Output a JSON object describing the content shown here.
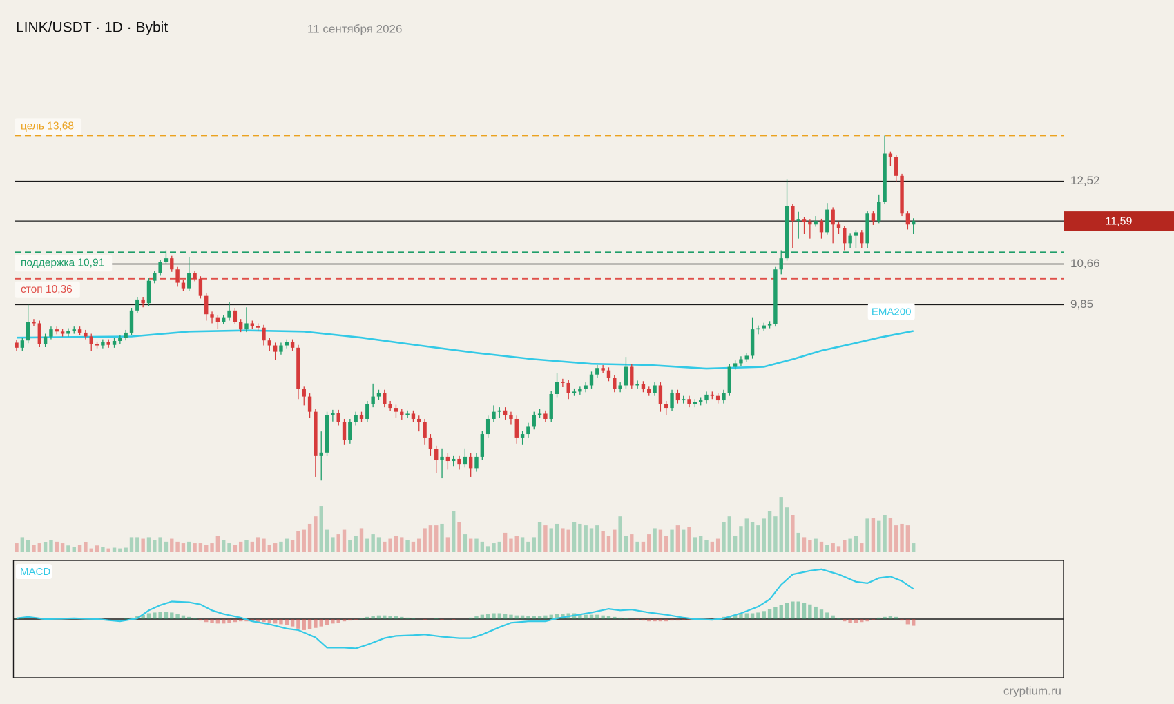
{
  "chart_data": {
    "type": "candlestick",
    "title": "LINK/USDT · 1D · Bybit",
    "date": "11 сентября 2026",
    "watermark": "cryptium.ru",
    "log_scale": true,
    "ylim": [
      6.9,
      14.5
    ],
    "up_color": "#1f9e6a",
    "down_color": "#d63b3b",
    "ohlc": [
      [
        9.15,
        9.2,
        9.0,
        9.06
      ],
      [
        9.06,
        9.24,
        9.01,
        9.19
      ],
      [
        9.19,
        9.85,
        9.14,
        9.53
      ],
      [
        9.53,
        9.58,
        9.45,
        9.5
      ],
      [
        9.5,
        9.55,
        9.07,
        9.12
      ],
      [
        9.12,
        9.31,
        9.07,
        9.26
      ],
      [
        9.26,
        9.44,
        9.21,
        9.39
      ],
      [
        9.39,
        9.44,
        9.3,
        9.35
      ],
      [
        9.35,
        9.4,
        9.26,
        9.31
      ],
      [
        9.31,
        9.41,
        9.26,
        9.36
      ],
      [
        9.36,
        9.44,
        9.31,
        9.39
      ],
      [
        9.39,
        9.44,
        9.28,
        9.33
      ],
      [
        9.33,
        9.38,
        9.21,
        9.26
      ],
      [
        9.26,
        9.31,
        9.0,
        9.12
      ],
      [
        9.12,
        9.17,
        9.05,
        9.1
      ],
      [
        9.1,
        9.21,
        9.05,
        9.16
      ],
      [
        9.16,
        9.21,
        9.06,
        9.11
      ],
      [
        9.11,
        9.23,
        9.06,
        9.18
      ],
      [
        9.18,
        9.29,
        9.13,
        9.24
      ],
      [
        9.24,
        9.38,
        9.19,
        9.33
      ],
      [
        9.33,
        9.79,
        9.28,
        9.74
      ],
      [
        9.74,
        10.0,
        9.69,
        9.95
      ],
      [
        9.95,
        10.0,
        9.8,
        9.88
      ],
      [
        9.88,
        10.37,
        9.83,
        10.32
      ],
      [
        10.32,
        10.52,
        10.27,
        10.47
      ],
      [
        10.47,
        10.75,
        10.42,
        10.7
      ],
      [
        10.7,
        10.95,
        10.65,
        10.78
      ],
      [
        10.78,
        10.83,
        10.5,
        10.55
      ],
      [
        10.55,
        10.6,
        10.2,
        10.28
      ],
      [
        10.28,
        10.33,
        10.12,
        10.17
      ],
      [
        10.17,
        10.8,
        10.12,
        10.47
      ],
      [
        10.47,
        10.52,
        10.31,
        10.36
      ],
      [
        10.36,
        10.41,
        9.97,
        10.02
      ],
      [
        10.02,
        10.07,
        9.55,
        9.67
      ],
      [
        9.67,
        9.72,
        9.5,
        9.6
      ],
      [
        9.6,
        9.65,
        9.4,
        9.53
      ],
      [
        9.53,
        9.65,
        9.48,
        9.6
      ],
      [
        9.6,
        9.9,
        9.55,
        9.74
      ],
      [
        9.74,
        9.79,
        9.48,
        9.53
      ],
      [
        9.53,
        9.58,
        9.34,
        9.39
      ],
      [
        9.39,
        9.8,
        9.34,
        9.5
      ],
      [
        9.5,
        9.55,
        9.4,
        9.45
      ],
      [
        9.45,
        9.5,
        9.37,
        9.42
      ],
      [
        9.42,
        9.47,
        9.1,
        9.19
      ],
      [
        9.19,
        9.24,
        9.0,
        9.1
      ],
      [
        9.1,
        9.15,
        8.85,
        8.99
      ],
      [
        8.99,
        9.15,
        8.94,
        9.1
      ],
      [
        9.1,
        9.21,
        9.05,
        9.16
      ],
      [
        9.16,
        9.21,
        9.01,
        9.06
      ],
      [
        9.06,
        9.11,
        8.2,
        8.36
      ],
      [
        8.36,
        8.41,
        8.1,
        8.24
      ],
      [
        8.24,
        8.29,
        7.9,
        8.0
      ],
      [
        8.0,
        8.05,
        7.05,
        7.35
      ],
      [
        7.35,
        7.7,
        7.0,
        7.39
      ],
      [
        7.39,
        8.0,
        7.34,
        7.95
      ],
      [
        7.95,
        8.03,
        7.85,
        7.98
      ],
      [
        7.98,
        8.03,
        7.79,
        7.84
      ],
      [
        7.84,
        7.89,
        7.5,
        7.57
      ],
      [
        7.57,
        7.89,
        7.52,
        7.84
      ],
      [
        7.84,
        8.0,
        7.79,
        7.95
      ],
      [
        7.95,
        8.0,
        7.84,
        7.89
      ],
      [
        7.89,
        8.17,
        7.84,
        8.12
      ],
      [
        8.12,
        8.45,
        8.07,
        8.24
      ],
      [
        8.24,
        8.35,
        8.19,
        8.3
      ],
      [
        8.3,
        8.35,
        8.07,
        8.12
      ],
      [
        8.12,
        8.17,
        8.01,
        8.06
      ],
      [
        8.06,
        8.11,
        7.9,
        8.0
      ],
      [
        8.0,
        8.05,
        7.88,
        7.95
      ],
      [
        7.95,
        8.02,
        7.9,
        7.97
      ],
      [
        7.97,
        8.02,
        7.84,
        7.89
      ],
      [
        7.89,
        7.94,
        7.7,
        7.84
      ],
      [
        7.84,
        7.89,
        7.5,
        7.61
      ],
      [
        7.61,
        7.66,
        7.35,
        7.44
      ],
      [
        7.44,
        7.49,
        7.1,
        7.28
      ],
      [
        7.28,
        7.45,
        7.03,
        7.33
      ],
      [
        7.33,
        7.38,
        7.15,
        7.27
      ],
      [
        7.27,
        7.35,
        7.2,
        7.3
      ],
      [
        7.3,
        7.35,
        7.15,
        7.23
      ],
      [
        7.23,
        7.45,
        7.18,
        7.33
      ],
      [
        7.33,
        7.38,
        7.05,
        7.17
      ],
      [
        7.17,
        7.38,
        7.12,
        7.33
      ],
      [
        7.33,
        7.71,
        7.28,
        7.66
      ],
      [
        7.66,
        7.94,
        7.61,
        7.89
      ],
      [
        7.89,
        8.1,
        7.84,
        8.0
      ],
      [
        8.0,
        8.07,
        7.9,
        8.02
      ],
      [
        8.02,
        8.07,
        7.88,
        7.95
      ],
      [
        7.95,
        8.0,
        7.8,
        7.89
      ],
      [
        7.89,
        7.94,
        7.52,
        7.61
      ],
      [
        7.61,
        7.71,
        7.5,
        7.66
      ],
      [
        7.66,
        7.83,
        7.61,
        7.78
      ],
      [
        7.78,
        8.0,
        7.73,
        7.95
      ],
      [
        7.95,
        8.05,
        7.9,
        7.97
      ],
      [
        7.97,
        8.02,
        7.84,
        7.89
      ],
      [
        7.89,
        8.33,
        7.84,
        8.28
      ],
      [
        8.28,
        8.63,
        8.23,
        8.48
      ],
      [
        8.48,
        8.53,
        8.4,
        8.46
      ],
      [
        8.46,
        8.51,
        8.2,
        8.3
      ],
      [
        8.3,
        8.37,
        8.25,
        8.32
      ],
      [
        8.32,
        8.41,
        8.27,
        8.36
      ],
      [
        8.36,
        8.47,
        8.31,
        8.42
      ],
      [
        8.42,
        8.65,
        8.37,
        8.6
      ],
      [
        8.6,
        8.76,
        8.55,
        8.71
      ],
      [
        8.71,
        8.76,
        8.62,
        8.67
      ],
      [
        8.67,
        8.72,
        8.49,
        8.54
      ],
      [
        8.54,
        8.59,
        8.31,
        8.36
      ],
      [
        8.36,
        8.47,
        8.31,
        8.42
      ],
      [
        8.42,
        8.9,
        8.37,
        8.73
      ],
      [
        8.73,
        8.78,
        8.37,
        8.42
      ],
      [
        8.42,
        8.5,
        8.37,
        8.44
      ],
      [
        8.44,
        8.49,
        8.31,
        8.36
      ],
      [
        8.36,
        8.41,
        8.25,
        8.3
      ],
      [
        8.3,
        8.47,
        8.25,
        8.42
      ],
      [
        8.42,
        8.47,
        8.0,
        8.12
      ],
      [
        8.12,
        8.17,
        7.95,
        8.06
      ],
      [
        8.06,
        8.35,
        8.01,
        8.3
      ],
      [
        8.3,
        8.35,
        8.13,
        8.18
      ],
      [
        8.18,
        8.25,
        8.13,
        8.2
      ],
      [
        8.2,
        8.25,
        8.07,
        8.12
      ],
      [
        8.12,
        8.2,
        8.07,
        8.15
      ],
      [
        8.15,
        8.23,
        8.1,
        8.18
      ],
      [
        8.18,
        8.32,
        8.13,
        8.27
      ],
      [
        8.27,
        8.32,
        8.2,
        8.25
      ],
      [
        8.25,
        8.3,
        8.13,
        8.18
      ],
      [
        8.18,
        8.35,
        8.13,
        8.3
      ],
      [
        8.3,
        8.78,
        8.25,
        8.73
      ],
      [
        8.73,
        8.84,
        8.68,
        8.79
      ],
      [
        8.79,
        8.91,
        8.74,
        8.86
      ],
      [
        8.86,
        8.97,
        8.81,
        8.92
      ],
      [
        8.92,
        9.6,
        8.87,
        9.39
      ],
      [
        9.39,
        9.46,
        9.3,
        9.41
      ],
      [
        9.41,
        9.51,
        9.36,
        9.46
      ],
      [
        9.46,
        9.54,
        9.41,
        9.49
      ],
      [
        9.49,
        10.6,
        9.44,
        10.55
      ],
      [
        10.55,
        10.95,
        10.45,
        10.78
      ],
      [
        10.78,
        12.56,
        10.73,
        11.93
      ],
      [
        11.93,
        11.98,
        11.0,
        11.59
      ],
      [
        11.59,
        11.8,
        11.2,
        11.62
      ],
      [
        11.62,
        11.67,
        11.3,
        11.57
      ],
      [
        11.57,
        11.62,
        11.2,
        11.51
      ],
      [
        11.51,
        11.7,
        11.46,
        11.59
      ],
      [
        11.59,
        11.64,
        11.2,
        11.34
      ],
      [
        11.34,
        12.0,
        11.29,
        11.85
      ],
      [
        11.85,
        11.9,
        11.1,
        11.51
      ],
      [
        11.51,
        11.56,
        11.3,
        11.43
      ],
      [
        11.43,
        11.48,
        10.95,
        11.1
      ],
      [
        11.1,
        11.31,
        11.0,
        11.26
      ],
      [
        11.26,
        11.39,
        11.0,
        11.34
      ],
      [
        11.34,
        11.39,
        11.0,
        11.1
      ],
      [
        11.1,
        11.81,
        11.0,
        11.76
      ],
      [
        11.76,
        11.81,
        11.5,
        11.59
      ],
      [
        11.59,
        12.2,
        11.54,
        12.02
      ],
      [
        12.02,
        13.68,
        11.97,
        13.21
      ],
      [
        13.21,
        13.26,
        12.9,
        13.12
      ],
      [
        13.12,
        13.17,
        12.5,
        12.65
      ],
      [
        12.65,
        12.7,
        11.7,
        11.76
      ],
      [
        11.76,
        11.81,
        11.4,
        11.51
      ],
      [
        11.51,
        11.65,
        11.3,
        11.59
      ]
    ],
    "volume": [
      12,
      20,
      16,
      10,
      12,
      13,
      16,
      14,
      12,
      9,
      7,
      10,
      13,
      5,
      9,
      7,
      5,
      6,
      5,
      6,
      20,
      20,
      18,
      20,
      16,
      20,
      14,
      18,
      14,
      12,
      14,
      12,
      12,
      10,
      12,
      22,
      16,
      12,
      10,
      14,
      16,
      14,
      20,
      18,
      10,
      12,
      14,
      18,
      16,
      28,
      30,
      38,
      48,
      62,
      30,
      20,
      24,
      30,
      16,
      22,
      32,
      18,
      24,
      20,
      14,
      18,
      22,
      20,
      16,
      14,
      18,
      32,
      36,
      36,
      38,
      20,
      55,
      40,
      24,
      18,
      18,
      14,
      8,
      12,
      14,
      26,
      18,
      22,
      20,
      14,
      20,
      40,
      36,
      32,
      38,
      32,
      30,
      40,
      38,
      36,
      32,
      36,
      28,
      22,
      30,
      48,
      22,
      24,
      14,
      14,
      24,
      32,
      30,
      22,
      30,
      36,
      30,
      34,
      20,
      22,
      16,
      14,
      18,
      40,
      48,
      22,
      35,
      45,
      40,
      36,
      45,
      55,
      48,
      74,
      60,
      50,
      26,
      20,
      16,
      18,
      14,
      10,
      12,
      8,
      16,
      18,
      22,
      12,
      45,
      46,
      42,
      50,
      46,
      36,
      38,
      36,
      12
    ],
    "levels": [
      {
        "value": 12.52,
        "label": "12,52"
      },
      {
        "value": 10.66,
        "label": "10,66"
      },
      {
        "value": 9.85,
        "label": "9,85"
      }
    ],
    "current_price": {
      "value": 11.59,
      "label": "11,59"
    },
    "zones": [
      {
        "value": 13.68,
        "label": "цель 13,68",
        "color": "#eba21f"
      },
      {
        "value": 10.91,
        "label": "поддержка 10,91",
        "color": "#1f9e6a"
      },
      {
        "value": 10.36,
        "label": "стоп 10,36",
        "color": "#e0504a"
      }
    ],
    "ema": {
      "name": "EMA200",
      "color": "#33c9e6",
      "x": [
        0,
        10,
        20,
        30,
        40,
        50,
        60,
        70,
        80,
        90,
        100,
        110,
        120,
        130,
        135,
        140,
        145,
        150,
        156
      ],
      "values": [
        9.24,
        9.25,
        9.26,
        9.35,
        9.37,
        9.35,
        9.24,
        9.1,
        8.97,
        8.86,
        8.78,
        8.76,
        8.7,
        8.73,
        8.86,
        9.01,
        9.12,
        9.24,
        9.36
      ]
    },
    "macd": {
      "name": "MACD",
      "color": "#33c9e6",
      "ylim": [
        -0.8,
        0.8
      ],
      "x": [
        0,
        2,
        5,
        10,
        14,
        18,
        21,
        23,
        25,
        27,
        30,
        32,
        34,
        36,
        39,
        41,
        44,
        47,
        49,
        52,
        54,
        57,
        59,
        61,
        64,
        66,
        69,
        71,
        74,
        77,
        79,
        81,
        84,
        86,
        89,
        92,
        94,
        97,
        100,
        103,
        105,
        107,
        110,
        113,
        116,
        118,
        121,
        123,
        126,
        129,
        131,
        133,
        135,
        138,
        140,
        143,
        146,
        148,
        150,
        152,
        154,
        156
      ],
      "values": [
        0.01,
        0.03,
        0.0,
        0.01,
        0.0,
        -0.03,
        0.01,
        0.12,
        0.19,
        0.24,
        0.23,
        0.2,
        0.12,
        0.07,
        0.02,
        -0.03,
        -0.07,
        -0.13,
        -0.15,
        -0.25,
        -0.39,
        -0.39,
        -0.4,
        -0.35,
        -0.26,
        -0.23,
        -0.22,
        -0.21,
        -0.24,
        -0.26,
        -0.26,
        -0.21,
        -0.11,
        -0.05,
        -0.03,
        -0.03,
        0.01,
        0.05,
        0.09,
        0.14,
        0.12,
        0.13,
        0.09,
        0.06,
        0.02,
        0.0,
        -0.01,
        0.01,
        0.08,
        0.17,
        0.27,
        0.47,
        0.61,
        0.66,
        0.68,
        0.61,
        0.51,
        0.49,
        0.56,
        0.58,
        0.52,
        0.41
      ],
      "histogram": [
        0.01,
        0.01,
        0,
        0,
        0.01,
        0.01,
        0,
        0,
        0,
        0.01,
        0,
        0,
        0,
        0,
        -0.01,
        -0.01,
        0,
        0,
        0,
        0.01,
        0.02,
        0.04,
        0.06,
        0.08,
        0.09,
        0.1,
        0.1,
        0.09,
        0.07,
        0.05,
        0.03,
        0.01,
        -0.02,
        -0.04,
        -0.05,
        -0.06,
        -0.06,
        -0.05,
        -0.04,
        -0.03,
        -0.03,
        -0.03,
        -0.04,
        -0.04,
        -0.05,
        -0.06,
        -0.07,
        -0.08,
        -0.1,
        -0.13,
        -0.15,
        -0.14,
        -0.12,
        -0.1,
        -0.08,
        -0.06,
        -0.05,
        -0.03,
        -0.02,
        -0.01,
        0.01,
        0.03,
        0.04,
        0.05,
        0.05,
        0.04,
        0.04,
        0.03,
        0.02,
        0.01,
        0,
        -0.01,
        0,
        0.01,
        -0.01,
        0,
        -0.01,
        0,
        0,
        0.02,
        0.04,
        0.06,
        0.07,
        0.08,
        0.08,
        0.07,
        0.06,
        0.05,
        0.05,
        0.04,
        0.04,
        0.04,
        0.05,
        0.06,
        0.07,
        0.07,
        0.08,
        0.08,
        0.07,
        0.06,
        0.06,
        0.06,
        0.05,
        0.04,
        0.03,
        0.02,
        0.01,
        0,
        -0.01,
        -0.02,
        -0.03,
        -0.03,
        -0.03,
        -0.03,
        -0.02,
        -0.02,
        -0.01,
        -0.01,
        0,
        0,
        0,
        0,
        0.01,
        0.03,
        0.04,
        0.06,
        0.07,
        0.08,
        0.08,
        0.09,
        0.11,
        0.14,
        0.16,
        0.19,
        0.22,
        0.24,
        0.24,
        0.22,
        0.2,
        0.17,
        0.13,
        0.09,
        0.05,
        0.01,
        -0.03,
        -0.05,
        -0.05,
        -0.04,
        -0.03,
        -0.01,
        0.02,
        0.03,
        0.04,
        0.03,
        -0.02,
        -0.07,
        -0.09
      ]
    }
  }
}
